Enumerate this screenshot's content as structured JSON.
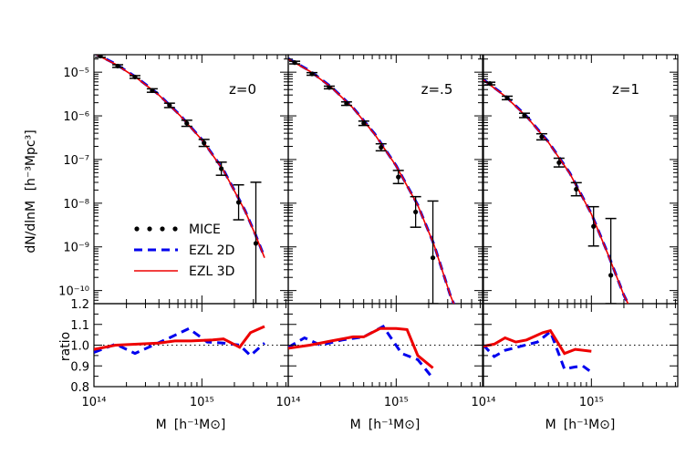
{
  "chart_data": {
    "type": "line",
    "ylabel_top": "dN/dlnM",
    "ylabel_top_units": "[h⁻³Mpc³]",
    "ylabel_bottom": "ratio",
    "xlabel": "M",
    "xlabel_units": "[h⁻¹M⊙]",
    "x_scale": "log",
    "xlim_log10": [
      14,
      15.8
    ],
    "top_y_scale": "log",
    "top_ylim_log10": [
      -10.3,
      -4.6
    ],
    "bottom_ylim": [
      0.8,
      1.2
    ],
    "x_tick_labels": [
      "10¹⁴",
      "10¹⁵"
    ],
    "top_y_tick_labels": [
      "10⁻⁵",
      "10⁻⁶",
      "10⁻⁷",
      "10⁻⁸",
      "10⁻⁹",
      "10⁻¹⁰"
    ],
    "bottom_y_tick_labels": [
      "1.2",
      "1.1",
      "1.0",
      "0.9",
      "0.8"
    ],
    "reference_line": 1.0,
    "legend": [
      {
        "label": "MICE",
        "style": "dots",
        "color": "#000000"
      },
      {
        "label": "EZL 2D",
        "style": "dashed",
        "color": "#0000ee"
      },
      {
        "label": "EZL 3D",
        "style": "solid",
        "color": "#ee0000"
      }
    ],
    "panels": [
      {
        "label": "z=0",
        "mice": [
          {
            "logM": 14.06,
            "logN": -4.63,
            "err": 0.03
          },
          {
            "logM": 14.22,
            "logN": -4.86,
            "err": 0.03
          },
          {
            "logM": 14.38,
            "logN": -5.11,
            "err": 0.03
          },
          {
            "logM": 14.54,
            "logN": -5.42,
            "err": 0.04
          },
          {
            "logM": 14.7,
            "logN": -5.76,
            "err": 0.05
          },
          {
            "logM": 14.86,
            "logN": -6.17,
            "err": 0.07
          },
          {
            "logM": 15.02,
            "logN": -6.62,
            "err": 0.08
          },
          {
            "logM": 15.18,
            "logN": -7.21,
            "err": 0.15
          },
          {
            "logM": 15.34,
            "logN": -7.98,
            "err": 0.4
          },
          {
            "logM": 15.5,
            "logN": -8.92,
            "err": 1.4
          }
        ],
        "ezl3d": [
          [
            14.0,
            -4.57
          ],
          [
            14.2,
            -4.82
          ],
          [
            14.4,
            -5.14
          ],
          [
            14.6,
            -5.52
          ],
          [
            14.8,
            -6.0
          ],
          [
            15.0,
            -6.55
          ],
          [
            15.2,
            -7.25
          ],
          [
            15.4,
            -8.18
          ],
          [
            15.5,
            -8.75
          ],
          [
            15.58,
            -9.25
          ]
        ],
        "ezl2d": [
          [
            14.0,
            -4.56
          ],
          [
            14.2,
            -4.81
          ],
          [
            14.4,
            -5.13
          ],
          [
            14.6,
            -5.51
          ],
          [
            14.8,
            -5.99
          ],
          [
            15.0,
            -6.54
          ],
          [
            15.2,
            -7.24
          ],
          [
            15.4,
            -8.17
          ],
          [
            15.5,
            -8.74
          ],
          [
            15.58,
            -9.24
          ]
        ],
        "ratio_3d": [
          [
            14.0,
            0.98
          ],
          [
            14.2,
            1.0
          ],
          [
            14.4,
            1.005
          ],
          [
            14.6,
            1.01
          ],
          [
            14.75,
            1.02
          ],
          [
            14.9,
            1.02
          ],
          [
            15.1,
            1.025
          ],
          [
            15.2,
            1.03
          ],
          [
            15.35,
            0.99
          ],
          [
            15.45,
            1.06
          ],
          [
            15.58,
            1.09
          ]
        ],
        "ratio_2d": [
          [
            14.0,
            0.965
          ],
          [
            14.2,
            1.005
          ],
          [
            14.38,
            0.96
          ],
          [
            14.55,
            1.0
          ],
          [
            14.7,
            1.035
          ],
          [
            14.88,
            1.08
          ],
          [
            15.05,
            1.015
          ],
          [
            15.2,
            1.01
          ],
          [
            15.35,
            1.0
          ],
          [
            15.45,
            0.95
          ],
          [
            15.58,
            1.01
          ]
        ]
      },
      {
        "label": "z=.5",
        "mice": [
          {
            "logM": 14.06,
            "logN": -4.78,
            "err": 0.03
          },
          {
            "logM": 14.22,
            "logN": -5.04,
            "err": 0.03
          },
          {
            "logM": 14.38,
            "logN": -5.35,
            "err": 0.03
          },
          {
            "logM": 14.54,
            "logN": -5.72,
            "err": 0.04
          },
          {
            "logM": 14.7,
            "logN": -6.17,
            "err": 0.05
          },
          {
            "logM": 14.86,
            "logN": -6.72,
            "err": 0.08
          },
          {
            "logM": 15.02,
            "logN": -7.4,
            "err": 0.15
          },
          {
            "logM": 15.18,
            "logN": -8.2,
            "err": 0.35
          },
          {
            "logM": 15.34,
            "logN": -9.25,
            "err": 1.3
          }
        ],
        "ezl3d": [
          [
            14.0,
            -4.7
          ],
          [
            14.2,
            -4.98
          ],
          [
            14.4,
            -5.35
          ],
          [
            14.6,
            -5.82
          ],
          [
            14.8,
            -6.42
          ],
          [
            15.0,
            -7.15
          ],
          [
            15.2,
            -8.05
          ],
          [
            15.35,
            -8.95
          ],
          [
            15.5,
            -10.1
          ],
          [
            15.55,
            -10.4
          ]
        ],
        "ezl2d": [
          [
            14.0,
            -4.69
          ],
          [
            14.2,
            -4.97
          ],
          [
            14.4,
            -5.34
          ],
          [
            14.6,
            -5.81
          ],
          [
            14.8,
            -6.41
          ],
          [
            15.0,
            -7.14
          ],
          [
            15.2,
            -8.04
          ],
          [
            15.35,
            -8.94
          ],
          [
            15.5,
            -10.1
          ],
          [
            15.55,
            -10.4
          ]
        ],
        "ratio_3d": [
          [
            14.0,
            0.985
          ],
          [
            14.2,
            1.0
          ],
          [
            14.4,
            1.02
          ],
          [
            14.6,
            1.04
          ],
          [
            14.7,
            1.04
          ],
          [
            14.85,
            1.08
          ],
          [
            15.0,
            1.08
          ],
          [
            15.1,
            1.075
          ],
          [
            15.2,
            0.95
          ],
          [
            15.34,
            0.89
          ]
        ],
        "ratio_2d": [
          [
            14.0,
            0.99
          ],
          [
            14.15,
            1.035
          ],
          [
            14.3,
            1.0
          ],
          [
            14.5,
            1.025
          ],
          [
            14.7,
            1.04
          ],
          [
            14.88,
            1.09
          ],
          [
            15.05,
            0.96
          ],
          [
            15.2,
            0.93
          ],
          [
            15.34,
            0.84
          ]
        ]
      },
      {
        "label": "z=1",
        "mice": [
          {
            "logM": 14.06,
            "logN": -5.26,
            "err": 0.03
          },
          {
            "logM": 14.22,
            "logN": -5.59,
            "err": 0.04
          },
          {
            "logM": 14.38,
            "logN": -5.99,
            "err": 0.05
          },
          {
            "logM": 14.54,
            "logN": -6.48,
            "err": 0.07
          },
          {
            "logM": 14.7,
            "logN": -7.07,
            "err": 0.1
          },
          {
            "logM": 14.86,
            "logN": -7.68,
            "err": 0.15
          },
          {
            "logM": 15.02,
            "logN": -8.53,
            "err": 0.45
          },
          {
            "logM": 15.18,
            "logN": -9.65,
            "err": 1.3
          }
        ],
        "ezl3d": [
          [
            14.0,
            -5.18
          ],
          [
            14.2,
            -5.55
          ],
          [
            14.4,
            -6.02
          ],
          [
            14.6,
            -6.6
          ],
          [
            14.8,
            -7.32
          ],
          [
            15.0,
            -8.25
          ],
          [
            15.15,
            -9.15
          ],
          [
            15.3,
            -10.1
          ],
          [
            15.36,
            -10.4
          ]
        ],
        "ezl2d": [
          [
            14.0,
            -5.17
          ],
          [
            14.2,
            -5.54
          ],
          [
            14.4,
            -6.01
          ],
          [
            14.6,
            -6.59
          ],
          [
            14.8,
            -7.31
          ],
          [
            15.0,
            -8.24
          ],
          [
            15.15,
            -9.14
          ],
          [
            15.3,
            -10.1
          ],
          [
            15.36,
            -10.4
          ]
        ],
        "ratio_3d": [
          [
            14.0,
            0.995
          ],
          [
            14.1,
            1.005
          ],
          [
            14.2,
            1.035
          ],
          [
            14.3,
            1.015
          ],
          [
            14.4,
            1.025
          ],
          [
            14.55,
            1.06
          ],
          [
            14.62,
            1.07
          ],
          [
            14.75,
            0.96
          ],
          [
            14.85,
            0.98
          ],
          [
            15.0,
            0.97
          ]
        ],
        "ratio_2d": [
          [
            14.0,
            1.0
          ],
          [
            14.1,
            0.945
          ],
          [
            14.2,
            0.975
          ],
          [
            14.35,
            0.995
          ],
          [
            14.5,
            1.015
          ],
          [
            14.62,
            1.065
          ],
          [
            14.75,
            0.885
          ],
          [
            14.85,
            0.895
          ],
          [
            14.92,
            0.9
          ],
          [
            15.0,
            0.87
          ]
        ]
      }
    ]
  }
}
